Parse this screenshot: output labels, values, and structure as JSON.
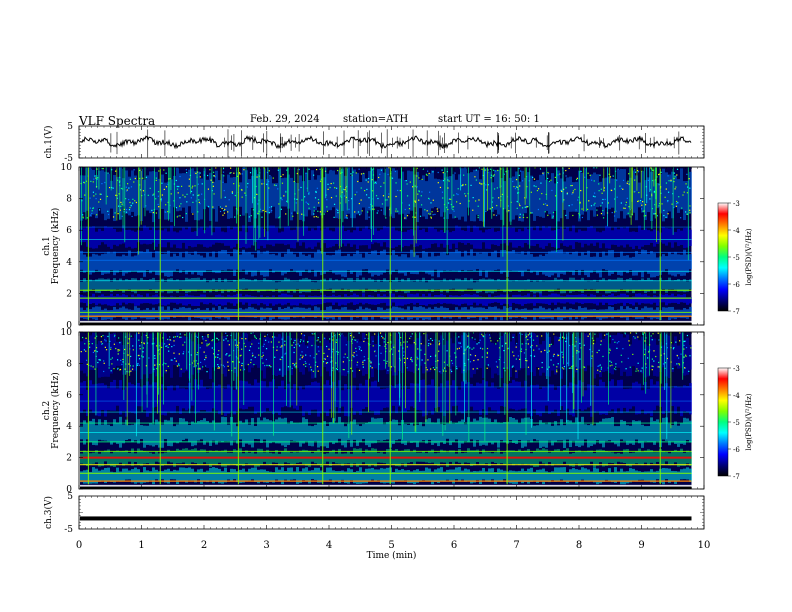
{
  "header": {
    "title": "VLF  Spectra",
    "date": "Feb. 29, 2024",
    "station": "station=ATH",
    "start": "start  UT  =    16: 50: 1"
  },
  "chart_data": [
    {
      "type": "line",
      "name": "ch1-waveform",
      "ylabel": "ch.1(V)",
      "ylim": [
        -5,
        5
      ],
      "yticks": [
        "5",
        "-5"
      ],
      "xlim": [
        0,
        10
      ],
      "baseline": 0,
      "color": "#000000"
    },
    {
      "type": "heatmap",
      "name": "ch1-spectrogram",
      "ylabel": "ch.1",
      "ylabel2": "Frequency (kHz)",
      "ylim": [
        0,
        10
      ],
      "yticks": [
        "0",
        "2",
        "4",
        "6",
        "8",
        "10"
      ],
      "xlim": [
        0,
        10
      ],
      "colorbar": {
        "label": "log(PSD)(V²/Hz)",
        "ticks": [
          "-3",
          "-4",
          "-5",
          "-6",
          "-7"
        ],
        "range": [
          -7,
          -3
        ]
      }
    },
    {
      "type": "heatmap",
      "name": "ch2-spectrogram",
      "ylabel": "ch.2",
      "ylabel2": "Frequency (kHz)",
      "ylim": [
        0,
        10
      ],
      "yticks": [
        "0",
        "2",
        "4",
        "6",
        "8",
        "10"
      ],
      "xlim": [
        0,
        10
      ],
      "colorbar": {
        "label": "log(PSD)(V²/Hz)",
        "ticks": [
          "-3",
          "-4",
          "-5",
          "-6",
          "-7"
        ],
        "range": [
          -7,
          -3
        ]
      }
    },
    {
      "type": "line",
      "name": "ch3-waveform",
      "ylabel": "ch.3(V)",
      "ylim": [
        -5,
        5
      ],
      "yticks": [
        "5",
        "-5"
      ],
      "xlim": [
        0,
        10
      ],
      "baseline": -1.8,
      "color": "#000000"
    }
  ],
  "xaxis": {
    "label": "Time  (min)",
    "ticks": [
      "0",
      "1",
      "2",
      "3",
      "4",
      "5",
      "6",
      "7",
      "8",
      "9",
      "10"
    ],
    "range": [
      0,
      10
    ],
    "data_end": 9.8
  },
  "colormap": [
    "#000000",
    "#00007a",
    "#0000ff",
    "#0078ff",
    "#00ffff",
    "#00ff80",
    "#80ff00",
    "#ffff00",
    "#ff8000",
    "#ff0000",
    "#ffffff"
  ]
}
